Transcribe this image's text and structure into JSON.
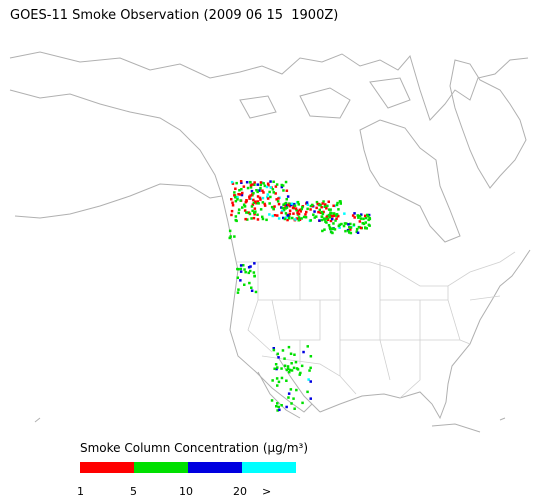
{
  "title": "GOES-11 Smoke Observation (2009 06 15  1900Z)",
  "legend": {
    "title": "Smoke Column Concentration (μg/m³)",
    "colors": [
      "#ff0000",
      "#00e000",
      "#0000e0",
      "#00ffff"
    ],
    "labels": [
      "1",
      "5",
      "10",
      "20",
      ">"
    ]
  }
}
